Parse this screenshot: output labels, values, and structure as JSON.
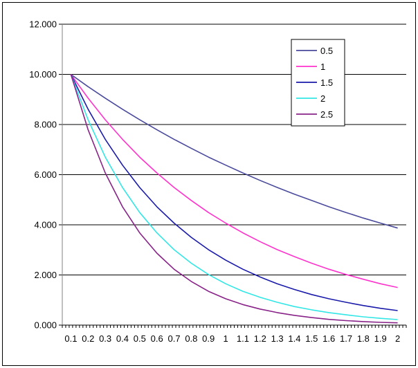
{
  "chart_data": {
    "type": "line",
    "title": "",
    "xlabel": "",
    "ylabel": "",
    "x": [
      0.1,
      0.2,
      0.3,
      0.4,
      0.5,
      0.6,
      0.7,
      0.8,
      0.9,
      1,
      1.1,
      1.2,
      1.3,
      1.4,
      1.5,
      1.6,
      1.7,
      1.8,
      1.9,
      2
    ],
    "x_tick_labels": [
      "0.1",
      "0.2",
      "0.3",
      "0.4",
      "0.5",
      "0.6",
      "0.7",
      "0.8",
      "0.9",
      "1",
      "1.1",
      "1.2",
      "1.3",
      "1.4",
      "1.5",
      "1.6",
      "1.7",
      "1.8",
      "1.9",
      "2"
    ],
    "ylim": [
      0,
      12
    ],
    "y_ticks": [
      0,
      2,
      4,
      6,
      8,
      10,
      12
    ],
    "y_tick_labels": [
      "0.000",
      "2.000",
      "4.000",
      "6.000",
      "8.000",
      "10.000",
      "12.000"
    ],
    "grid": "horizontal",
    "legend_position": "top-right",
    "series": [
      {
        "name": "0.5",
        "color": "#4a4a9c",
        "values": [
          10.0,
          9.51,
          9.05,
          8.61,
          8.19,
          7.79,
          7.41,
          7.05,
          6.7,
          6.38,
          6.07,
          5.77,
          5.49,
          5.22,
          4.97,
          4.72,
          4.49,
          4.27,
          4.07,
          3.87
        ]
      },
      {
        "name": "1",
        "color": "#ff33cc",
        "values": [
          10.0,
          9.05,
          8.19,
          7.41,
          6.7,
          6.07,
          5.49,
          4.97,
          4.49,
          4.07,
          3.68,
          3.33,
          3.01,
          2.73,
          2.47,
          2.23,
          2.02,
          1.83,
          1.65,
          1.5
        ]
      },
      {
        "name": "1.5",
        "color": "#1a1aaa",
        "values": [
          10.0,
          8.61,
          7.41,
          6.38,
          5.49,
          4.72,
          4.07,
          3.5,
          3.01,
          2.59,
          2.23,
          1.92,
          1.65,
          1.42,
          1.22,
          1.05,
          0.91,
          0.78,
          0.67,
          0.58
        ]
      },
      {
        "name": "2",
        "color": "#33e6e6",
        "values": [
          10.0,
          8.19,
          6.7,
          5.49,
          4.49,
          3.68,
          3.01,
          2.47,
          2.02,
          1.65,
          1.35,
          1.11,
          0.91,
          0.74,
          0.61,
          0.5,
          0.41,
          0.33,
          0.27,
          0.22
        ]
      },
      {
        "name": "2.5",
        "color": "#882288",
        "values": [
          10.0,
          7.79,
          6.07,
          4.72,
          3.68,
          2.87,
          2.23,
          1.74,
          1.35,
          1.05,
          0.82,
          0.64,
          0.5,
          0.39,
          0.3,
          0.23,
          0.18,
          0.14,
          0.11,
          0.09
        ]
      }
    ]
  }
}
